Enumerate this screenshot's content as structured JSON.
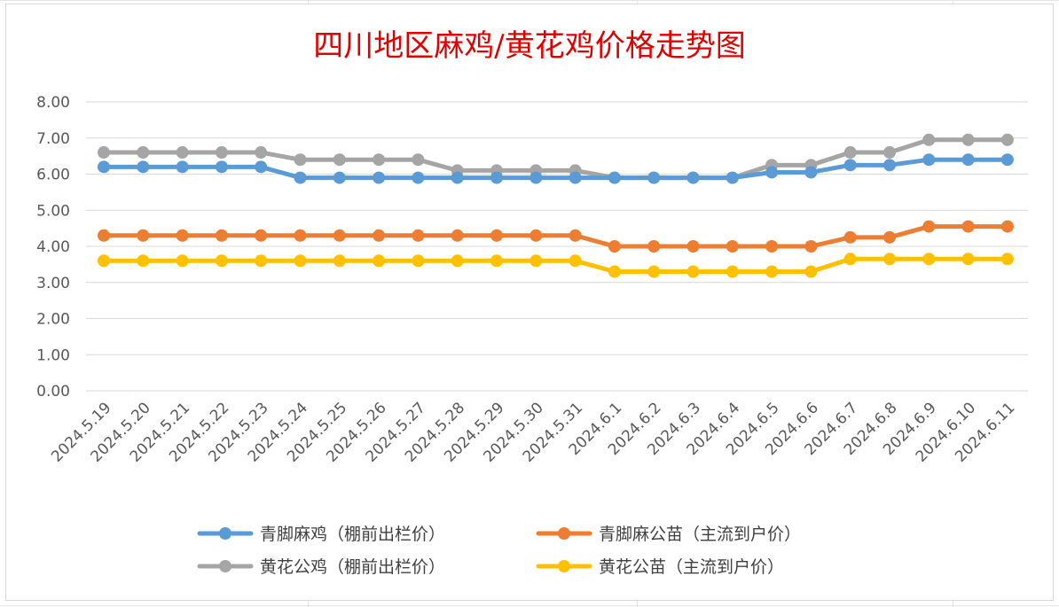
{
  "chart_data": {
    "type": "line",
    "title": "四川地区麻鸡/黄花鸡价格走势图",
    "ylim": [
      0,
      8
    ],
    "ytick_labels": [
      "0.00",
      "1.00",
      "2.00",
      "3.00",
      "4.00",
      "5.00",
      "6.00",
      "7.00",
      "8.00"
    ],
    "grid": true,
    "legend_position": "bottom",
    "categories": [
      "2024.5.19",
      "2024.5.20",
      "2024.5.21",
      "2024.5.22",
      "2024.5.23",
      "2024.5.24",
      "2024.5.25",
      "2024.5.26",
      "2024.5.27",
      "2024.5.28",
      "2024.5.29",
      "2024.5.30",
      "2024.5.31",
      "2024.6.1",
      "2024.6.2",
      "2024.6.3",
      "2024.6.4",
      "2024.6.5",
      "2024.6.6",
      "2024.6.7",
      "2024.6.8",
      "2024.6.9",
      "2024.6.10",
      "2024.6.11"
    ],
    "series": [
      {
        "name": "青脚麻鸡（棚前出栏价）",
        "color": "#5b9bd5",
        "values": [
          6.2,
          6.2,
          6.2,
          6.2,
          6.2,
          5.9,
          5.9,
          5.9,
          5.9,
          5.9,
          5.9,
          5.9,
          5.9,
          5.9,
          5.9,
          5.9,
          5.9,
          6.05,
          6.05,
          6.25,
          6.25,
          6.4,
          6.4,
          6.4
        ]
      },
      {
        "name": "青脚麻公苗（主流到户价）",
        "color": "#ed7d31",
        "values": [
          4.3,
          4.3,
          4.3,
          4.3,
          4.3,
          4.3,
          4.3,
          4.3,
          4.3,
          4.3,
          4.3,
          4.3,
          4.3,
          4.0,
          4.0,
          4.0,
          4.0,
          4.0,
          4.0,
          4.25,
          4.25,
          4.55,
          4.55,
          4.55
        ]
      },
      {
        "name": "黄花公鸡（棚前出栏价）",
        "color": "#a5a5a5",
        "values": [
          6.6,
          6.6,
          6.6,
          6.6,
          6.6,
          6.4,
          6.4,
          6.4,
          6.4,
          6.1,
          6.1,
          6.1,
          6.1,
          5.9,
          5.9,
          5.9,
          5.9,
          6.25,
          6.25,
          6.6,
          6.6,
          6.95,
          6.95,
          6.95
        ]
      },
      {
        "name": "黄花公苗（主流到户价）",
        "color": "#ffc000",
        "values": [
          3.6,
          3.6,
          3.6,
          3.6,
          3.6,
          3.6,
          3.6,
          3.6,
          3.6,
          3.6,
          3.6,
          3.6,
          3.6,
          3.3,
          3.3,
          3.3,
          3.3,
          3.3,
          3.3,
          3.65,
          3.65,
          3.65,
          3.65,
          3.65
        ]
      }
    ],
    "draw_order": [
      2,
      0,
      1,
      3
    ],
    "axis_color": "#d9d9d9",
    "grid_color": "#d9d9d9"
  }
}
